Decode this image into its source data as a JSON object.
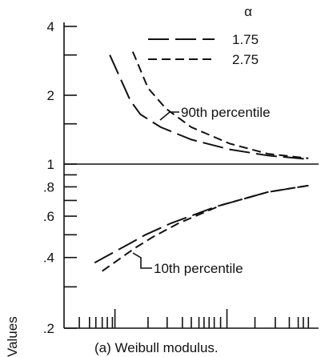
{
  "chart_data": {
    "type": "line",
    "y_scale": "log",
    "ylim": [
      0.2,
      4
    ],
    "yticks": [
      {
        "value": 4,
        "label": "4"
      },
      {
        "value": 2,
        "label": "2"
      },
      {
        "value": 1,
        "label": "1"
      },
      {
        "value": 0.8,
        "label": ".8"
      },
      {
        "value": 0.6,
        "label": ".6"
      },
      {
        "value": 0.4,
        "label": ".4"
      },
      {
        "value": 0.2,
        "label": ".2"
      }
    ],
    "xlim": [
      0,
      1
    ],
    "ylabel": "Values",
    "caption": "(a) Weibull modulus.",
    "legend": {
      "title": "α",
      "position": "top-right"
    },
    "series": [
      {
        "name": "1.75",
        "dash": "long",
        "p90": [
          [
            0.18,
            3.0
          ],
          [
            0.26,
            1.9
          ],
          [
            0.3,
            1.65
          ],
          [
            0.38,
            1.45
          ],
          [
            0.5,
            1.28
          ],
          [
            0.65,
            1.16
          ],
          [
            0.8,
            1.09
          ],
          [
            0.96,
            1.05
          ]
        ],
        "p10": [
          [
            0.12,
            0.38
          ],
          [
            0.26,
            0.46
          ],
          [
            0.32,
            0.5
          ],
          [
            0.42,
            0.56
          ],
          [
            0.6,
            0.66
          ],
          [
            0.8,
            0.76
          ],
          [
            0.96,
            0.81
          ]
        ]
      },
      {
        "name": "2.75",
        "dash": "short",
        "p90": [
          [
            0.27,
            3.1
          ],
          [
            0.33,
            2.15
          ],
          [
            0.4,
            1.75
          ],
          [
            0.5,
            1.45
          ],
          [
            0.65,
            1.23
          ],
          [
            0.8,
            1.11
          ],
          [
            0.96,
            1.06
          ]
        ],
        "p10": [
          [
            0.15,
            0.35
          ],
          [
            0.28,
            0.44
          ],
          [
            0.35,
            0.49
          ],
          [
            0.45,
            0.56
          ],
          [
            0.62,
            0.67
          ],
          [
            0.8,
            0.76
          ],
          [
            0.96,
            0.81
          ]
        ]
      }
    ],
    "annotations": [
      {
        "text": "90th percentile",
        "series_point": [
          0.48,
          1.6
        ]
      },
      {
        "text": "10th percentile",
        "series_point": [
          0.28,
          0.45
        ]
      }
    ]
  }
}
